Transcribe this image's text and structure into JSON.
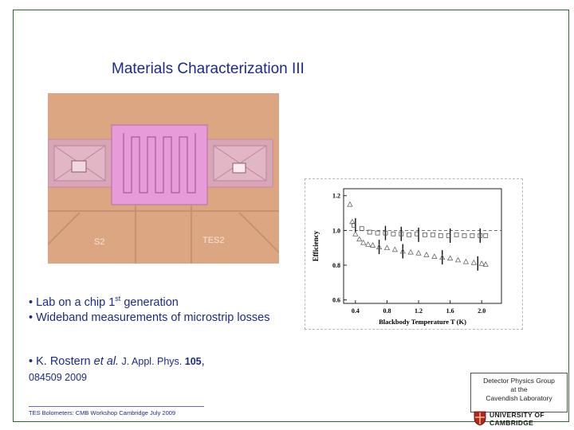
{
  "slide": {
    "title": "Materials Characterization III",
    "photo_labels": {
      "left": "S2",
      "right": "TES2"
    },
    "bullets": [
      {
        "prefix": "• ",
        "text_before": "Lab  on a chip 1",
        "sup": "st",
        "text_after": " generation"
      },
      {
        "prefix": "• ",
        "text": "Wideband measurements of microstrip losses"
      }
    ],
    "citation": {
      "prefix": "• ",
      "authors": "K. Rostern ",
      "etal": "et al.",
      "journal": " J. Appl. Phys. ",
      "volume": "105",
      "comma": ",",
      "number": "084509 2009"
    },
    "affiliation_box": [
      "Detector Physics Group",
      "at  the",
      "Cavendish Laboratory"
    ],
    "footer": "TES Bolometers: CMB Workshop Cambridge July 2009",
    "logo": {
      "line1": "UNIVERSITY OF",
      "line2": "CAMBRIDGE"
    }
  },
  "chart_data": {
    "type": "scatter",
    "xlabel": "Blackbody Temperature T (K)",
    "ylabel": "Efficiency",
    "x_ticks": [
      "0.4",
      "0.8",
      "1.2",
      "1.6",
      "2.0"
    ],
    "y_ticks": [
      "0.6",
      "0.8",
      "1.0",
      "1.2"
    ],
    "xlim": [
      0.25,
      2.25
    ],
    "ylim": [
      0.58,
      1.24
    ],
    "series": [
      {
        "marker": "open-square",
        "x": [
          0.38,
          0.48,
          0.58,
          0.68,
          0.78,
          0.88,
          0.98,
          1.08,
          1.18,
          1.28,
          1.38,
          1.48,
          1.58,
          1.68,
          1.78,
          1.88,
          1.98,
          2.05
        ],
        "y": [
          1.03,
          1.01,
          0.99,
          0.985,
          0.985,
          0.98,
          0.98,
          0.975,
          0.98,
          0.975,
          0.975,
          0.97,
          0.97,
          0.975,
          0.97,
          0.97,
          0.97,
          0.97
        ]
      },
      {
        "marker": "open-triangle",
        "x": [
          0.33,
          0.36,
          0.4,
          0.45,
          0.5,
          0.56,
          0.62,
          0.7,
          0.8,
          0.9,
          1.0,
          1.1,
          1.2,
          1.3,
          1.4,
          1.5,
          1.6,
          1.7,
          1.8,
          1.9,
          2.0,
          2.05
        ],
        "y": [
          1.15,
          1.05,
          0.98,
          0.95,
          0.93,
          0.92,
          0.915,
          0.905,
          0.9,
          0.89,
          0.88,
          0.875,
          0.87,
          0.86,
          0.85,
          0.845,
          0.84,
          0.83,
          0.82,
          0.815,
          0.81,
          0.805
        ]
      }
    ],
    "error_bars": [
      {
        "x": 0.4,
        "y": 1.03
      },
      {
        "x": 0.78,
        "y": 0.985
      },
      {
        "x": 0.98,
        "y": 0.98
      },
      {
        "x": 1.2,
        "y": 0.975
      },
      {
        "x": 1.6,
        "y": 0.97
      },
      {
        "x": 1.98,
        "y": 0.97
      },
      {
        "x": 0.7,
        "y": 0.905
      },
      {
        "x": 1.0,
        "y": 0.88
      },
      {
        "x": 1.5,
        "y": 0.845
      },
      {
        "x": 1.95,
        "y": 0.81
      }
    ]
  },
  "colors": {
    "title": "#1c2a8c",
    "frame": "#2e6b2e",
    "photo_bg": "#d8a07c",
    "pad_pink": "#e79bd9"
  }
}
